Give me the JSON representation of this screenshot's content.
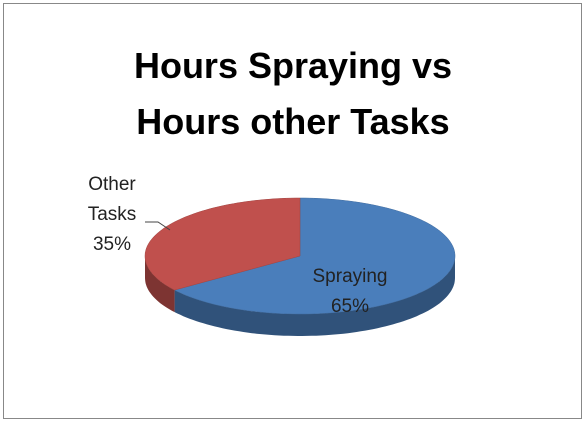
{
  "chart_data": {
    "type": "pie",
    "title": "Hours Spraying vs Hours other Tasks",
    "categories": [
      "Spraying",
      "Other Tasks"
    ],
    "values": [
      65,
      35
    ],
    "value_labels": [
      "65%",
      "35%"
    ],
    "colors": [
      "#4a7ebb",
      "#c0504d"
    ]
  }
}
